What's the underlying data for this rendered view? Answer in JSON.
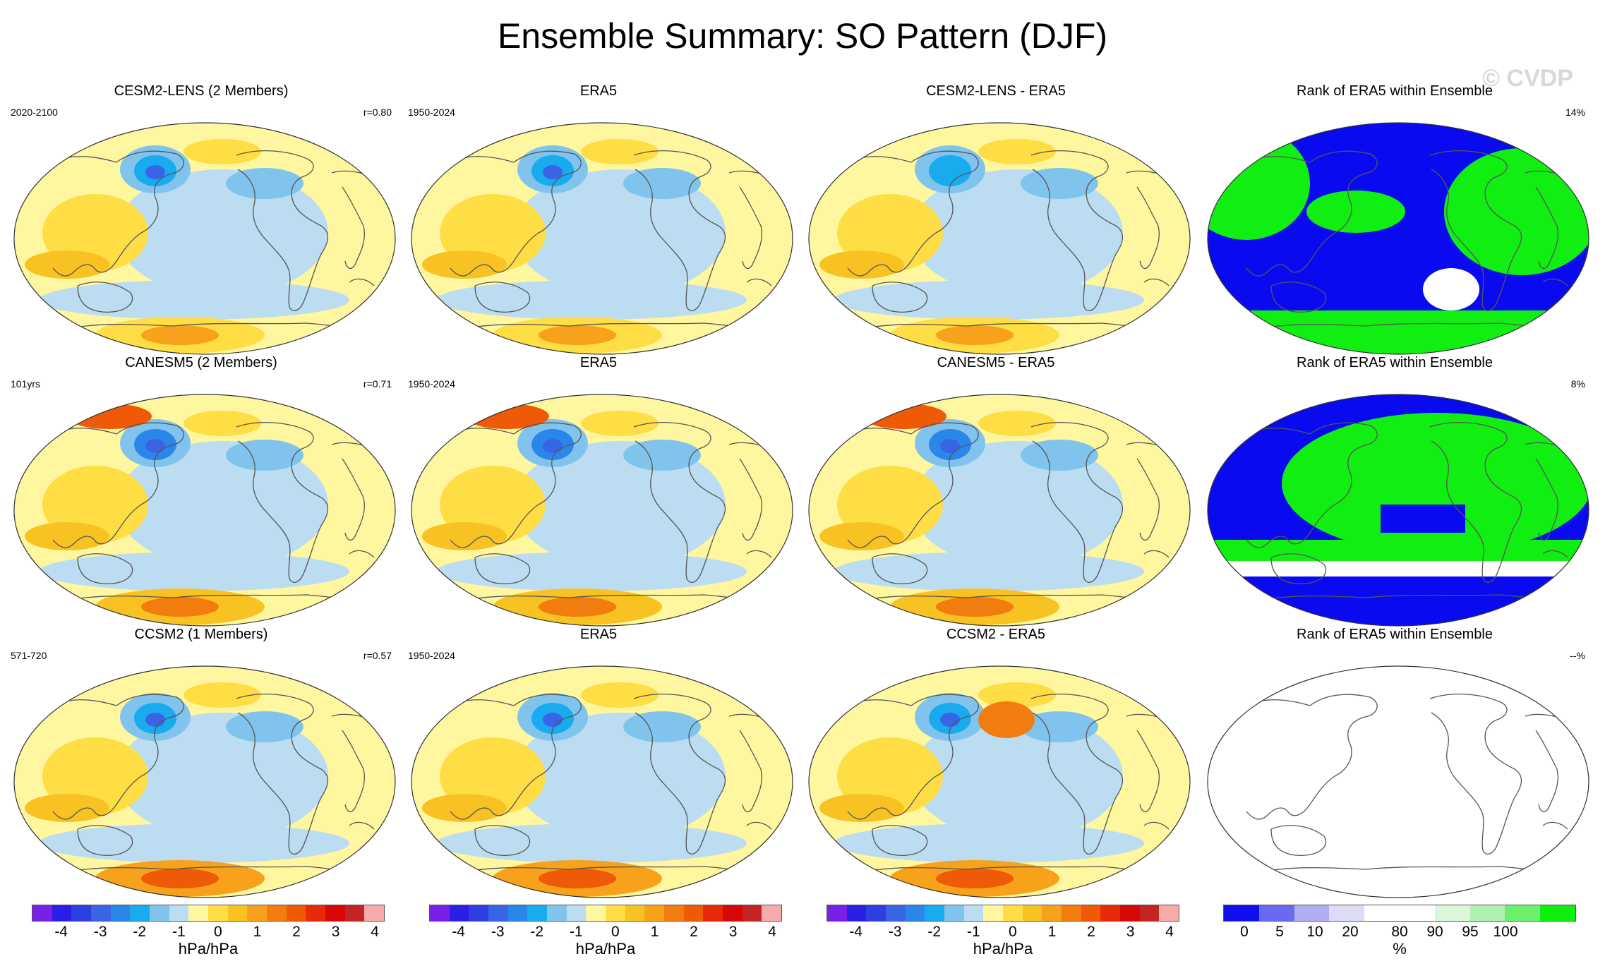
{
  "title": "Ensemble Summary: SO Pattern (DJF)",
  "watermark": "© CVDP",
  "rows": [
    {
      "model": {
        "title": "CESM2-LENS (2 Members)",
        "left": "2020-2100",
        "right": "r=0.80"
      },
      "obs": {
        "title": "ERA5",
        "left": "1950-2024",
        "right": ""
      },
      "diff": {
        "title": "CESM2-LENS - ERA5",
        "left": "",
        "right": ""
      },
      "rank": {
        "title": "Rank of ERA5 within Ensemble",
        "left": "",
        "right": "14%"
      }
    },
    {
      "model": {
        "title": "CANESM5 (2 Members)",
        "left": "101yrs",
        "right": "r=0.71"
      },
      "obs": {
        "title": "ERA5",
        "left": "1950-2024",
        "right": ""
      },
      "diff": {
        "title": "CANESM5 - ERA5",
        "left": "",
        "right": ""
      },
      "rank": {
        "title": "Rank of ERA5 within Ensemble",
        "left": "",
        "right": "8%"
      }
    },
    {
      "model": {
        "title": "CCSM2 (1 Members)",
        "left": "571-720",
        "right": "r=0.57"
      },
      "obs": {
        "title": "ERA5",
        "left": "1950-2024",
        "right": ""
      },
      "diff": {
        "title": "CCSM2 - ERA5",
        "left": "",
        "right": ""
      },
      "rank": {
        "title": "Rank of ERA5 within Ensemble",
        "left": "",
        "right": "--%"
      }
    }
  ],
  "colorbar": {
    "colors": [
      "#7a1fe6",
      "#2a1ee8",
      "#2c3fe0",
      "#3a64e6",
      "#2b86ea",
      "#1aaaee",
      "#80c4ee",
      "#bcdcf2",
      "#fff7a0",
      "#ffdd44",
      "#f8c222",
      "#f7a21a",
      "#f27c0e",
      "#ee5a06",
      "#e82a08",
      "#d80808",
      "#c42424",
      "#f7aaaa"
    ],
    "ticks": [
      "-4",
      "-3",
      "-2",
      "-1",
      "0",
      "1",
      "2",
      "3",
      "4"
    ],
    "unit": "hPa/hPa"
  },
  "rank_colorbar": {
    "colors": [
      "#1010ee",
      "#6a6af0",
      "#aeaef0",
      "#dcdcf6",
      "#ffffff",
      "#ffffff",
      "#dcf6dc",
      "#aef0ae",
      "#6af06a",
      "#10ee10"
    ],
    "ticks": [
      "0",
      "5",
      "10",
      "20",
      "80",
      "90",
      "95",
      "100"
    ],
    "unit": "%"
  },
  "legend_colors": {
    "land_line": "#555555",
    "rank_low": "#0a0af0",
    "rank_high": "#11ee11"
  }
}
